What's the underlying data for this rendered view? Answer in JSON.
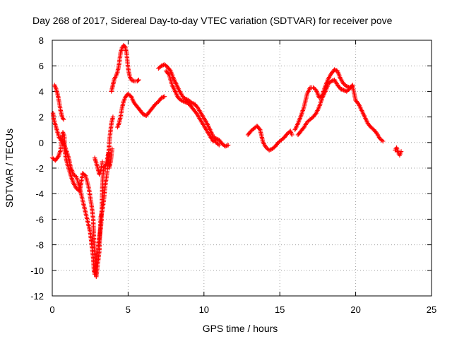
{
  "chart_data": {
    "type": "scatter",
    "title": "Day 268 of 2017, Sidereal Day-to-day VTEC variation (SDTVAR) for receiver pove",
    "xlabel": "GPS time / hours",
    "ylabel": "SDTVAR / TECUs",
    "xlim": [
      0,
      25
    ],
    "ylim": [
      -12,
      8
    ],
    "x_ticks": [
      "0",
      "5",
      "10",
      "15",
      "20",
      "25"
    ],
    "y_ticks": [
      "8",
      "6",
      "4",
      "2",
      "0",
      "-2",
      "-4",
      "-6",
      "-8",
      "-10",
      "-12"
    ],
    "grid": true,
    "marker": "+",
    "color": "#ff0000",
    "series": [
      {
        "name": "SDTVAR",
        "segments": [
          [
            [
              0.0,
              -1.2
            ],
            [
              0.2,
              -1.4
            ],
            [
              0.4,
              -1.1
            ],
            [
              0.55,
              -0.6
            ],
            [
              0.6,
              0.0
            ],
            [
              0.7,
              0.8
            ],
            [
              0.8,
              0.5
            ],
            [
              0.8,
              -0.5
            ],
            [
              0.9,
              -1.2
            ],
            [
              1.0,
              -1.7
            ],
            [
              1.2,
              -2.5
            ],
            [
              1.4,
              -3.2
            ],
            [
              1.6,
              -3.6
            ],
            [
              1.8,
              -3.8
            ],
            [
              1.9,
              -3.2
            ],
            [
              2.0,
              -2.4
            ],
            [
              2.2,
              -2.6
            ],
            [
              2.4,
              -3.5
            ],
            [
              2.6,
              -5.0
            ],
            [
              2.7,
              -6.0
            ],
            [
              2.75,
              -7.5
            ],
            [
              2.8,
              -9.0
            ],
            [
              2.85,
              -10.0
            ],
            [
              2.9,
              -10.5
            ],
            [
              3.0,
              -9.5
            ],
            [
              3.1,
              -8.5
            ],
            [
              3.15,
              -7.0
            ],
            [
              3.2,
              -5.8
            ],
            [
              3.3,
              -5.3
            ],
            [
              3.4,
              -4.5
            ],
            [
              3.5,
              -3.3
            ],
            [
              3.6,
              -2.5
            ],
            [
              3.7,
              -1.2
            ],
            [
              3.75,
              -0.2
            ],
            [
              3.8,
              0.5
            ],
            [
              3.9,
              1.5
            ],
            [
              4.0,
              2.0
            ]
          ],
          [
            [
              0.05,
              2.3
            ],
            [
              0.1,
              1.8
            ],
            [
              0.25,
              1.2
            ],
            [
              0.35,
              0.8
            ],
            [
              0.45,
              0.4
            ],
            [
              0.55,
              0.2
            ],
            [
              0.7,
              0.1
            ],
            [
              0.8,
              -0.2
            ],
            [
              1.0,
              -0.9
            ],
            [
              1.1,
              -1.3
            ],
            [
              1.2,
              -1.9
            ],
            [
              1.4,
              -2.5
            ],
            [
              1.6,
              -2.7
            ],
            [
              1.8,
              -3.5
            ],
            [
              2.0,
              -4.5
            ],
            [
              2.2,
              -5.5
            ],
            [
              2.4,
              -6.5
            ],
            [
              2.5,
              -7.0
            ],
            [
              2.6,
              -8.0
            ],
            [
              2.7,
              -9.0
            ],
            [
              2.75,
              -10.0
            ],
            [
              2.8,
              -10.3
            ],
            [
              2.9,
              -9.6
            ],
            [
              3.0,
              -8.5
            ],
            [
              3.1,
              -7.5
            ],
            [
              3.2,
              -6.6
            ],
            [
              3.25,
              -6.0
            ],
            [
              3.3,
              -3.5
            ],
            [
              3.35,
              -2.5
            ],
            [
              3.4,
              -2.0
            ],
            [
              3.5,
              -1.8
            ],
            [
              3.6,
              -1.5
            ],
            [
              3.7,
              -0.8
            ],
            [
              3.75,
              -2.0
            ],
            [
              3.85,
              -1.5
            ],
            [
              3.95,
              -0.5
            ]
          ],
          [
            [
              0.15,
              4.5
            ],
            [
              0.25,
              4.2
            ],
            [
              0.35,
              3.8
            ],
            [
              0.45,
              3.2
            ],
            [
              0.55,
              2.5
            ],
            [
              0.65,
              2.0
            ],
            [
              0.75,
              1.8
            ]
          ],
          [
            [
              2.8,
              -1.2
            ],
            [
              2.9,
              -1.6
            ],
            [
              3.0,
              -2.0
            ],
            [
              3.1,
              -2.5
            ],
            [
              3.2,
              -2.2
            ],
            [
              3.3,
              -1.5
            ]
          ],
          [
            [
              3.9,
              4.0
            ],
            [
              4.0,
              4.5
            ],
            [
              4.1,
              5.0
            ],
            [
              4.2,
              5.2
            ],
            [
              4.3,
              5.5
            ],
            [
              4.4,
              6.1
            ],
            [
              4.5,
              7.0
            ],
            [
              4.6,
              7.4
            ],
            [
              4.7,
              7.6
            ],
            [
              4.8,
              7.5
            ],
            [
              4.9,
              7.0
            ],
            [
              5.0,
              5.8
            ],
            [
              5.1,
              5.2
            ],
            [
              5.2,
              4.9
            ],
            [
              5.4,
              4.8
            ],
            [
              5.6,
              4.8
            ],
            [
              5.7,
              4.9
            ]
          ],
          [
            [
              4.3,
              1.2
            ],
            [
              4.4,
              1.5
            ],
            [
              4.5,
              2.0
            ],
            [
              4.6,
              2.7
            ],
            [
              4.7,
              3.2
            ],
            [
              4.8,
              3.5
            ],
            [
              4.9,
              3.7
            ],
            [
              5.0,
              3.8
            ],
            [
              5.2,
              3.6
            ],
            [
              5.4,
              3.1
            ],
            [
              5.6,
              2.8
            ],
            [
              5.8,
              2.5
            ],
            [
              6.0,
              2.2
            ],
            [
              6.2,
              2.1
            ],
            [
              6.4,
              2.4
            ],
            [
              6.6,
              2.7
            ],
            [
              6.8,
              3.0
            ],
            [
              7.0,
              3.2
            ],
            [
              7.2,
              3.5
            ],
            [
              7.4,
              3.6
            ]
          ],
          [
            [
              7.0,
              5.8
            ],
            [
              7.2,
              6.0
            ],
            [
              7.4,
              6.1
            ],
            [
              7.6,
              5.9
            ],
            [
              7.8,
              5.6
            ],
            [
              8.0,
              5.0
            ],
            [
              8.2,
              4.5
            ],
            [
              8.4,
              4.0
            ],
            [
              8.6,
              3.6
            ],
            [
              8.8,
              3.4
            ],
            [
              9.0,
              3.3
            ],
            [
              9.2,
              3.1
            ],
            [
              9.4,
              3.0
            ],
            [
              9.6,
              2.7
            ],
            [
              9.8,
              2.3
            ],
            [
              10.0,
              1.9
            ],
            [
              10.2,
              1.5
            ],
            [
              10.4,
              1.0
            ],
            [
              10.6,
              0.5
            ],
            [
              10.8,
              0.3
            ],
            [
              11.0,
              0.2
            ],
            [
              11.2,
              -0.1
            ],
            [
              11.4,
              -0.3
            ],
            [
              11.6,
              -0.2
            ]
          ],
          [
            [
              7.5,
              5.6
            ],
            [
              7.7,
              5.3
            ],
            [
              7.9,
              4.5
            ],
            [
              8.1,
              4.0
            ],
            [
              8.3,
              3.5
            ],
            [
              8.5,
              3.3
            ],
            [
              8.7,
              3.2
            ],
            [
              8.9,
              3.1
            ],
            [
              9.1,
              2.9
            ],
            [
              9.3,
              2.6
            ],
            [
              9.5,
              2.3
            ],
            [
              9.7,
              1.9
            ],
            [
              9.9,
              1.5
            ],
            [
              10.1,
              1.1
            ],
            [
              10.3,
              0.7
            ],
            [
              10.5,
              0.3
            ],
            [
              10.6,
              0.1
            ],
            [
              10.7,
              0.2
            ],
            [
              10.8,
              0.0
            ],
            [
              11.0,
              -0.2
            ]
          ],
          [
            [
              12.9,
              0.6
            ],
            [
              13.1,
              0.9
            ],
            [
              13.3,
              1.1
            ],
            [
              13.5,
              1.3
            ],
            [
              13.7,
              1.0
            ],
            [
              13.8,
              0.5
            ],
            [
              13.9,
              0.0
            ],
            [
              14.1,
              -0.4
            ],
            [
              14.3,
              -0.6
            ],
            [
              14.5,
              -0.5
            ],
            [
              14.7,
              -0.3
            ],
            [
              14.9,
              0.0
            ],
            [
              15.1,
              0.2
            ],
            [
              15.3,
              0.4
            ],
            [
              15.5,
              0.7
            ],
            [
              15.7,
              0.9
            ],
            [
              15.8,
              0.6
            ]
          ],
          [
            [
              16.0,
              1.0
            ],
            [
              16.2,
              1.5
            ],
            [
              16.4,
              2.1
            ],
            [
              16.6,
              2.8
            ],
            [
              16.8,
              3.8
            ],
            [
              17.0,
              4.3
            ],
            [
              17.2,
              4.3
            ],
            [
              17.4,
              4.1
            ],
            [
              17.6,
              3.5
            ],
            [
              17.8,
              3.7
            ],
            [
              18.0,
              4.4
            ],
            [
              18.2,
              5.0
            ],
            [
              18.4,
              5.4
            ],
            [
              18.6,
              5.7
            ],
            [
              18.8,
              5.6
            ],
            [
              19.0,
              5.0
            ],
            [
              19.2,
              4.6
            ],
            [
              19.4,
              4.4
            ],
            [
              19.6,
              4.3
            ],
            [
              19.8,
              4.4
            ],
            [
              20.0,
              3.3
            ],
            [
              20.2,
              3.0
            ],
            [
              20.4,
              2.5
            ],
            [
              20.6,
              2.0
            ],
            [
              20.8,
              1.5
            ],
            [
              21.0,
              1.2
            ],
            [
              21.2,
              1.0
            ],
            [
              21.4,
              0.7
            ],
            [
              21.6,
              0.3
            ],
            [
              21.8,
              0.1
            ]
          ],
          [
            [
              16.2,
              0.6
            ],
            [
              16.4,
              0.9
            ],
            [
              16.6,
              1.2
            ],
            [
              16.8,
              1.6
            ],
            [
              17.0,
              1.8
            ],
            [
              17.2,
              2.0
            ],
            [
              17.4,
              2.3
            ],
            [
              17.6,
              2.8
            ],
            [
              17.8,
              3.5
            ],
            [
              18.0,
              4.0
            ],
            [
              18.2,
              4.6
            ],
            [
              18.4,
              4.8
            ],
            [
              18.6,
              4.9
            ],
            [
              18.8,
              4.5
            ],
            [
              19.0,
              4.2
            ],
            [
              19.2,
              4.1
            ],
            [
              19.4,
              4.0
            ],
            [
              19.6,
              4.2
            ],
            [
              19.8,
              4.5
            ]
          ],
          [
            [
              22.6,
              -0.6
            ],
            [
              22.7,
              -0.4
            ],
            [
              22.8,
              -0.8
            ],
            [
              22.9,
              -1.0
            ],
            [
              23.0,
              -0.7
            ]
          ]
        ]
      }
    ]
  }
}
